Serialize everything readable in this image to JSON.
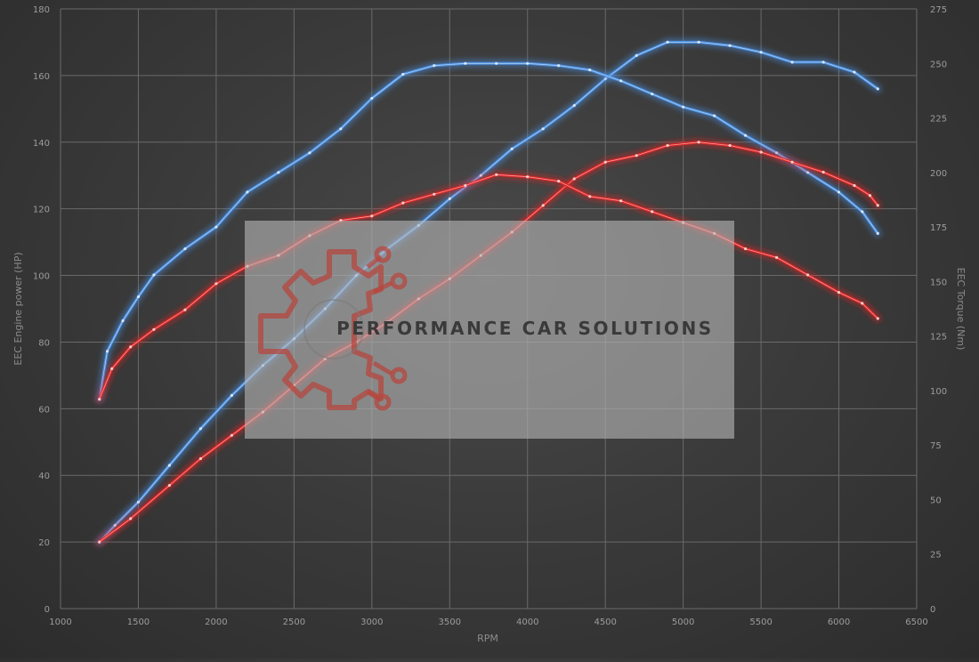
{
  "chart_data": {
    "type": "line",
    "title": "",
    "xlabel": "RPM",
    "ylabel_left": "EEC Engine power (HP)",
    "ylabel_right": "EEC Torque (Nm)",
    "xlim": [
      1000,
      6500
    ],
    "ylim_left": [
      0,
      180
    ],
    "ylim_right": [
      0,
      275
    ],
    "x_ticks": [
      1000,
      1500,
      2000,
      2500,
      3000,
      3500,
      4000,
      4500,
      5000,
      5500,
      6000,
      6500
    ],
    "y_ticks_left": [
      0,
      20,
      40,
      60,
      80,
      100,
      120,
      140,
      160,
      180
    ],
    "y_ticks_right": [
      0,
      25,
      50,
      75,
      100,
      125,
      150,
      175,
      200,
      225,
      250,
      275
    ],
    "grid": true,
    "legend": "none",
    "colors": {
      "tuned": "#4a90e2",
      "stock": "#e02424"
    },
    "series": [
      {
        "axis": "left",
        "color": "#4a90e2",
        "x": [
          1250,
          1350,
          1500,
          1700,
          1900,
          2100,
          2300,
          2500,
          2700,
          2900,
          3100,
          3300,
          3500,
          3700,
          3900,
          4100,
          4300,
          4500,
          4700,
          4900,
          5100,
          5300,
          5500,
          5700,
          5900,
          6100,
          6250
        ],
        "y": [
          20,
          25,
          32,
          43,
          54,
          64,
          73,
          81,
          90,
          100,
          108,
          115,
          123,
          130,
          138,
          144,
          151,
          159,
          166,
          170,
          170,
          169,
          167,
          164,
          164,
          161,
          156
        ]
      },
      {
        "axis": "right",
        "color": "#4a90e2",
        "x": [
          1250,
          1300,
          1400,
          1500,
          1600,
          1800,
          2000,
          2200,
          2400,
          2600,
          2800,
          3000,
          3200,
          3400,
          3600,
          3800,
          4000,
          4200,
          4400,
          4600,
          4800,
          5000,
          5200,
          5400,
          5600,
          5800,
          6000,
          6150,
          6250
        ],
        "y": [
          96,
          118,
          132,
          143,
          153,
          165,
          175,
          191,
          200,
          209,
          220,
          234,
          245,
          249,
          250,
          250,
          250,
          249,
          247,
          242,
          236,
          230,
          226,
          217,
          209,
          200,
          191,
          182,
          172
        ]
      },
      {
        "axis": "left",
        "color": "#e02424",
        "x": [
          1250,
          1450,
          1700,
          1900,
          2100,
          2300,
          2500,
          2700,
          2900,
          3100,
          3300,
          3500,
          3700,
          3900,
          4100,
          4300,
          4500,
          4700,
          4900,
          5100,
          5300,
          5500,
          5700,
          5900,
          6100,
          6200,
          6250
        ],
        "y": [
          20,
          27,
          37,
          45,
          52,
          59,
          67,
          75,
          80,
          86,
          93,
          99,
          106,
          113,
          121,
          129,
          134,
          136,
          139,
          140,
          139,
          137,
          134,
          131,
          127,
          124,
          121
        ]
      },
      {
        "axis": "right",
        "color": "#e02424",
        "x": [
          1250,
          1330,
          1450,
          1600,
          1800,
          2000,
          2200,
          2400,
          2600,
          2800,
          3000,
          3200,
          3400,
          3600,
          3800,
          4000,
          4200,
          4400,
          4600,
          4800,
          5000,
          5200,
          5400,
          5600,
          5800,
          6000,
          6150,
          6250
        ],
        "y": [
          96,
          110,
          120,
          128,
          137,
          149,
          157,
          162,
          171,
          178,
          180,
          186,
          190,
          194,
          199,
          198,
          196,
          189,
          187,
          182,
          177,
          172,
          165,
          161,
          153,
          145,
          140,
          133
        ]
      }
    ]
  },
  "watermark": {
    "text": "PERFORMANCE CAR SOLUTIONS",
    "logo_icon": "gear-circuit-logo-icon"
  }
}
